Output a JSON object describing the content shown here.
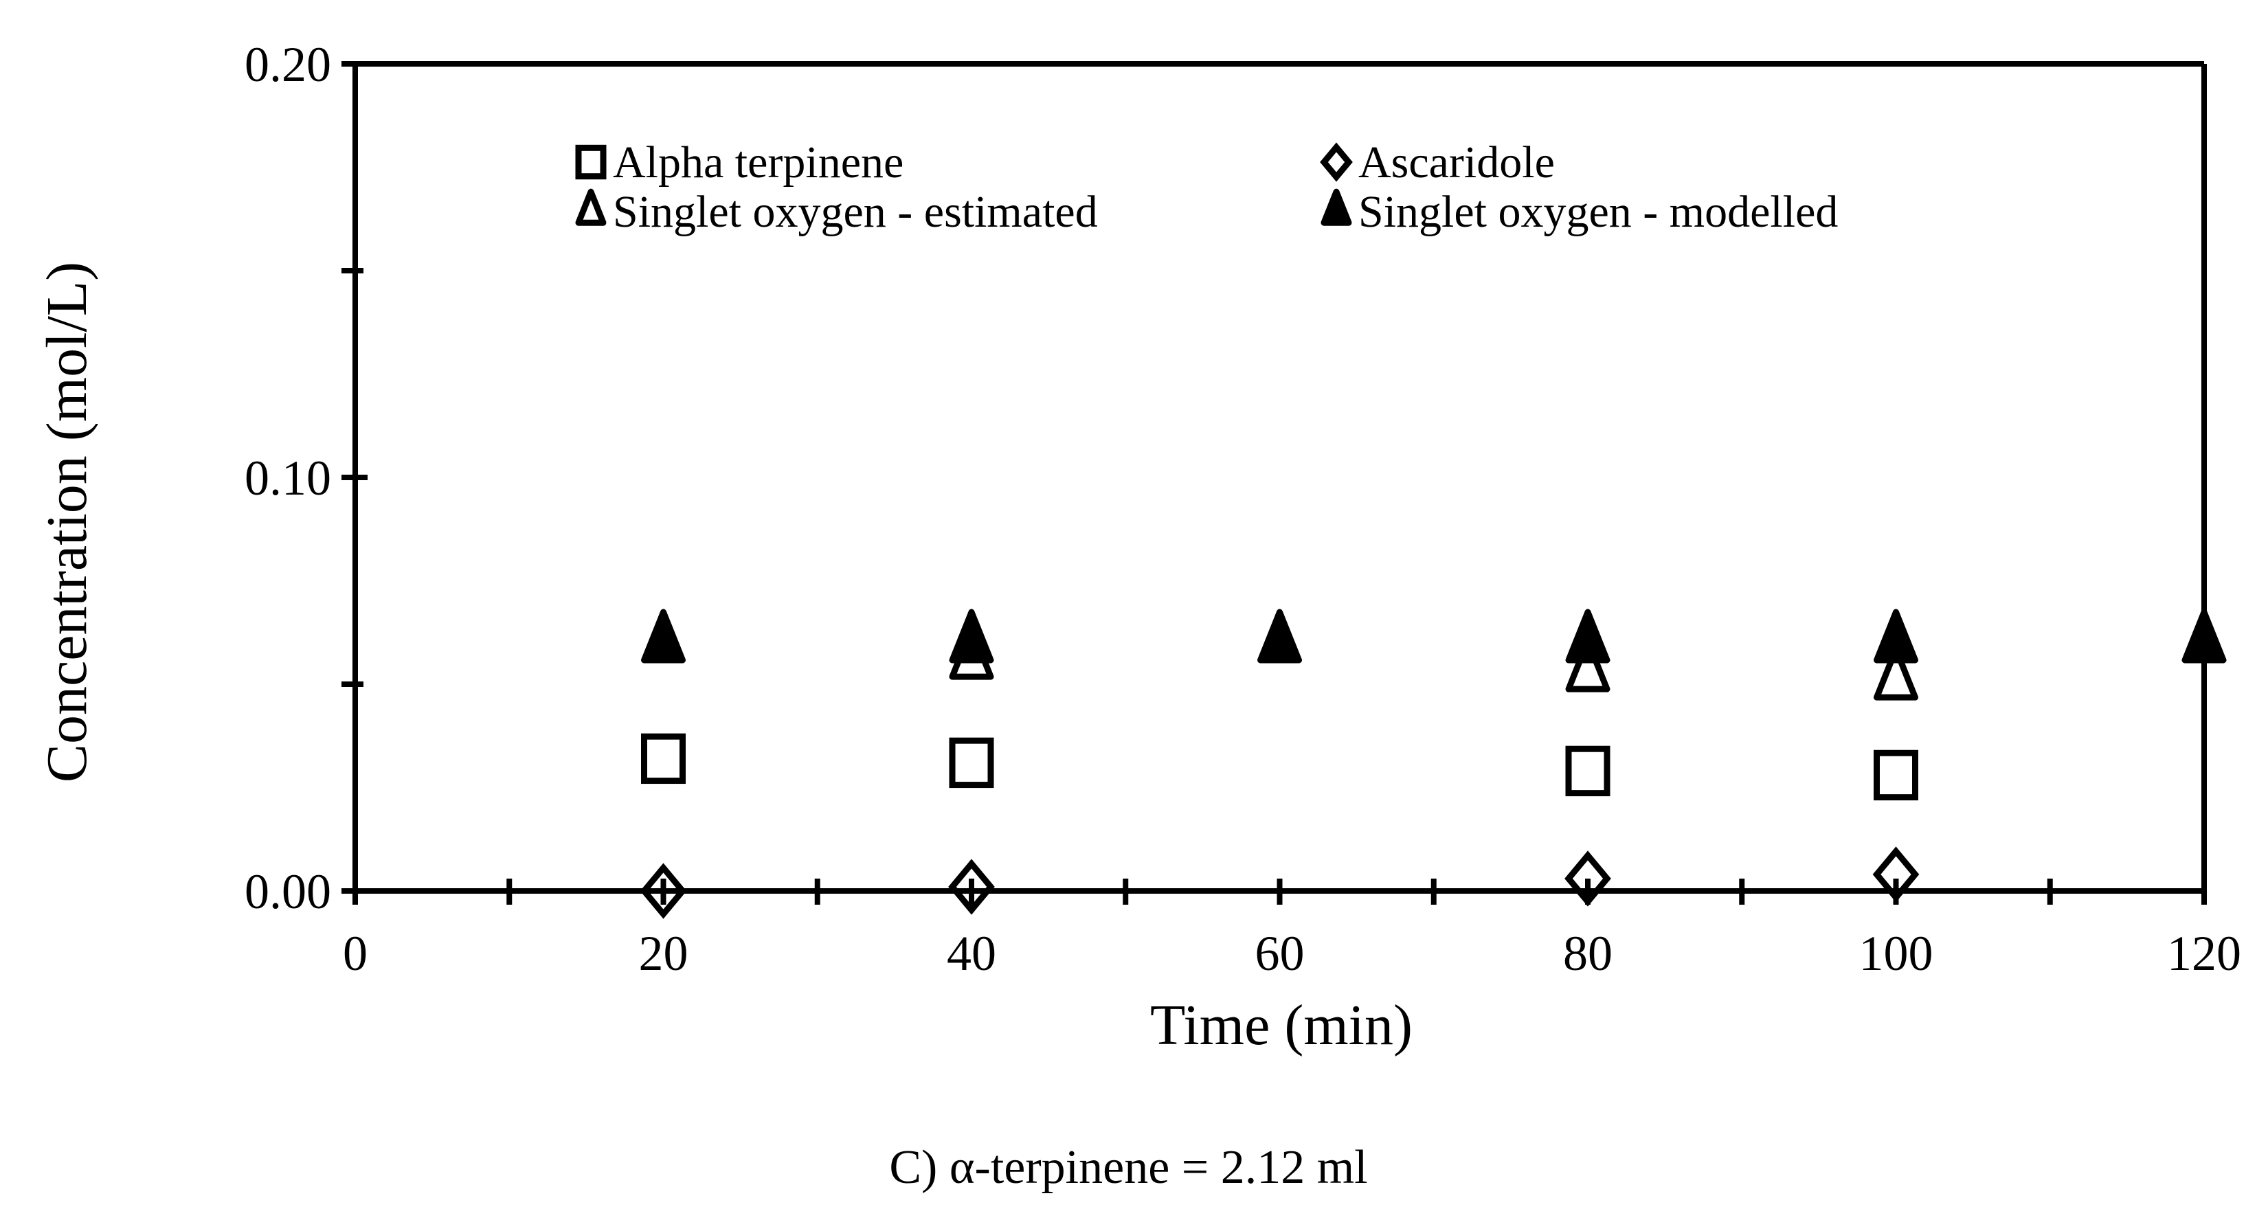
{
  "chart_data": {
    "type": "scatter",
    "title": "",
    "xlabel": "Time (min)",
    "ylabel": "Concentration (mol/L)",
    "xlim": [
      0,
      120
    ],
    "ylim": [
      0,
      0.2
    ],
    "x_ticks": [
      "0",
      "20",
      "40",
      "60",
      "80",
      "100",
      "120"
    ],
    "y_ticks": [
      "0.00",
      "0.10",
      "0.20"
    ],
    "grid": false,
    "legend_position": "upper-left inside",
    "series": [
      {
        "name": "Alpha terpinene",
        "marker": "open-square",
        "x": [
          20,
          40,
          80,
          100
        ],
        "y": [
          0.032,
          0.031,
          0.029,
          0.028
        ]
      },
      {
        "name": "Ascaridole",
        "marker": "open-diamond",
        "x": [
          20,
          40,
          80,
          100
        ],
        "y": [
          0.0,
          0.001,
          0.003,
          0.004
        ]
      },
      {
        "name": "Singlet oxygen - estimated",
        "marker": "open-triangle",
        "x": [
          40,
          80,
          100
        ],
        "y": [
          0.056,
          0.053,
          0.051
        ]
      },
      {
        "name": "Singlet oxygen - modelled",
        "marker": "filled-triangle",
        "x": [
          20,
          40,
          60,
          80,
          100,
          120
        ],
        "y": [
          0.06,
          0.06,
          0.06,
          0.06,
          0.06,
          0.06
        ]
      }
    ],
    "caption": "C)   α-terpinene = 2.12 ml"
  }
}
